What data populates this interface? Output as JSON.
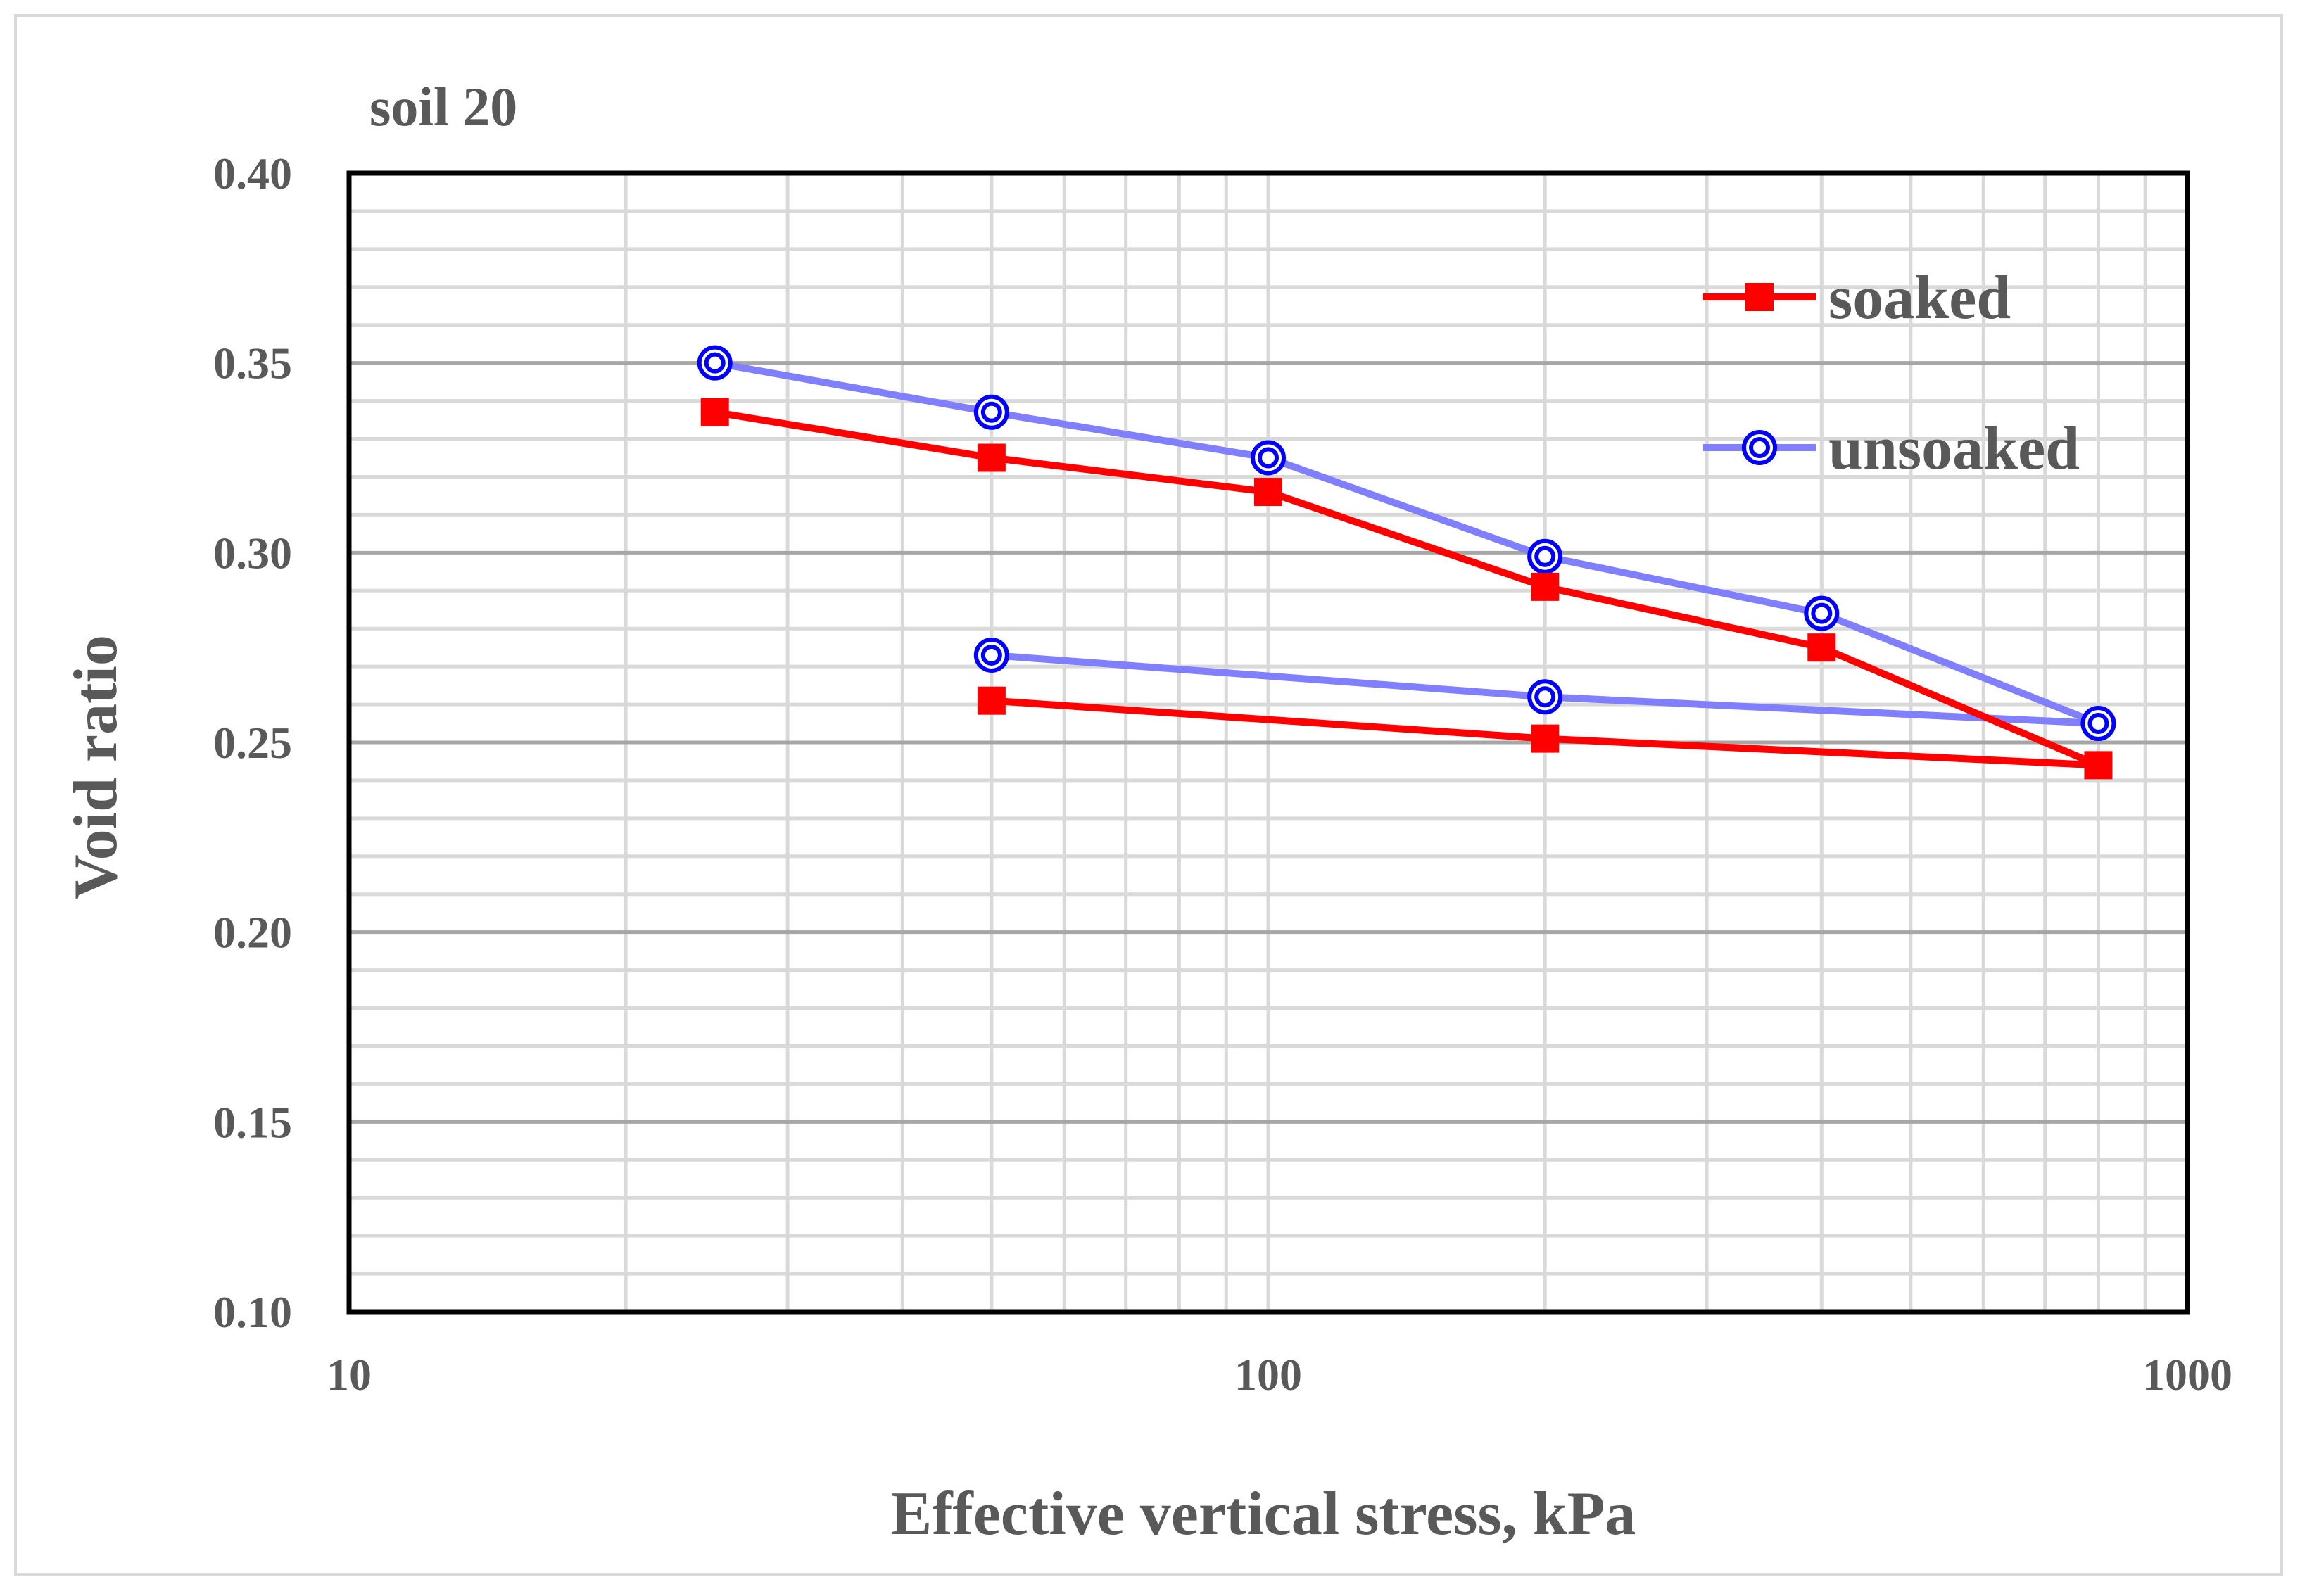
{
  "chart_data": {
    "type": "line",
    "title": "soil 20",
    "xlabel": "Effective vertical stress, kPa",
    "ylabel": "Void ratio",
    "x_scale": "log",
    "xlim": [
      10,
      1000
    ],
    "ylim": [
      0.1,
      0.4
    ],
    "x_ticks": [
      "10",
      "100",
      "1000"
    ],
    "y_ticks": [
      "0.10",
      "0.15",
      "0.20",
      "0.25",
      "0.30",
      "0.35",
      "0.40"
    ],
    "grid": true,
    "legend_position": "top-right",
    "series": [
      {
        "name": "soaked",
        "color": "#ff0000",
        "marker": "square",
        "x": [
          25,
          50,
          100,
          200,
          400,
          800,
          200,
          50
        ],
        "y": [
          0.337,
          0.325,
          0.316,
          0.291,
          0.275,
          0.244,
          0.251,
          0.261
        ]
      },
      {
        "name": "unsoaked",
        "color": "#7f7fff",
        "marker_color": "#0000ff",
        "marker": "double-circle",
        "x": [
          25,
          50,
          100,
          200,
          400,
          800,
          200,
          50
        ],
        "y": [
          0.35,
          0.337,
          0.325,
          0.299,
          0.284,
          0.255,
          0.262,
          0.273
        ]
      }
    ]
  }
}
